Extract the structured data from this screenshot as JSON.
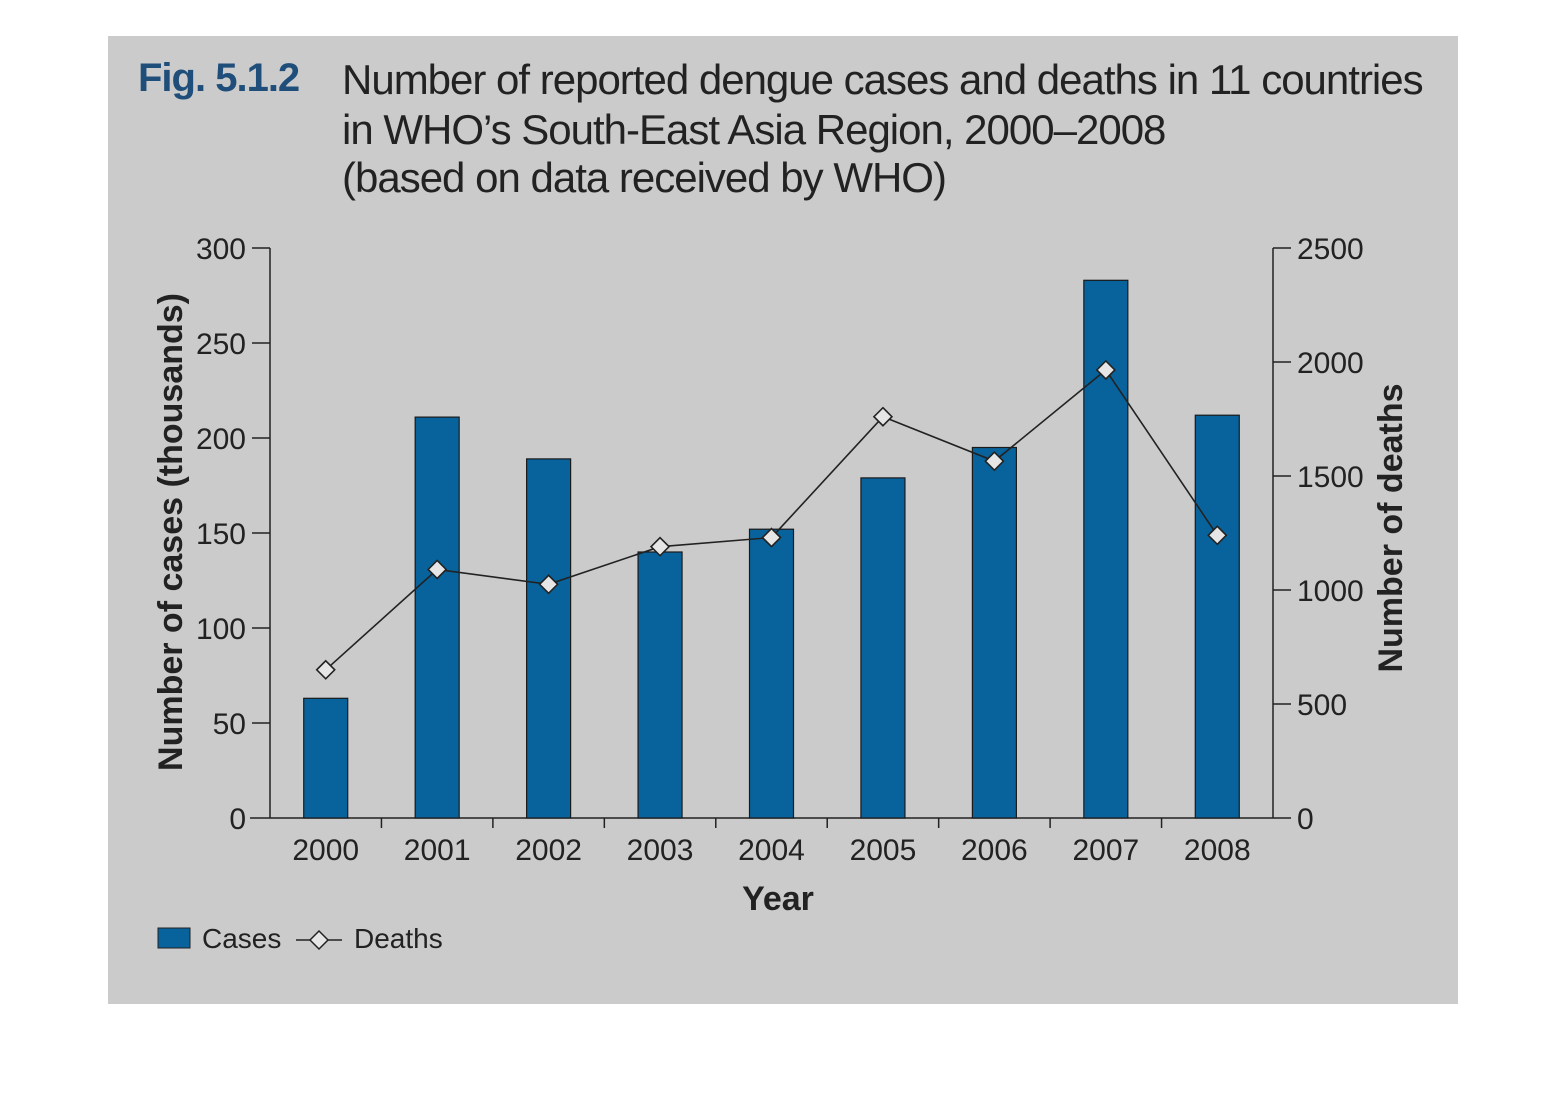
{
  "figure": {
    "fig_number": "Fig. 5.1.2",
    "title_lines": [
      "Number of reported dengue cases and deaths in 11 countries",
      "in WHO’s South-East Asia Region, 2000–2008",
      "(based on data received by WHO)"
    ]
  },
  "chart_data": {
    "type": "bar",
    "categories": [
      "2000",
      "2001",
      "2002",
      "2003",
      "2004",
      "2005",
      "2006",
      "2007",
      "2008"
    ],
    "series": [
      {
        "name": "Cases",
        "type": "bar",
        "axis": "left",
        "color": "#08639c",
        "values": [
          63,
          211,
          189,
          140,
          152,
          179,
          195,
          283,
          212
        ]
      },
      {
        "name": "Deaths",
        "type": "line",
        "axis": "right",
        "color": "#222222",
        "values": [
          650,
          1090,
          1025,
          1190,
          1230,
          1760,
          1565,
          1965,
          1240
        ]
      }
    ],
    "xlabel": "Year",
    "ylabel": "Number of cases (thousands)",
    "y2label": "Number of deaths",
    "ylim": [
      0,
      300
    ],
    "y2lim": [
      0,
      2500
    ],
    "yticks": [
      "0",
      "50",
      "100",
      "150",
      "200",
      "250",
      "300"
    ],
    "y2ticks": [
      "0",
      "500",
      "1000",
      "1500",
      "2000",
      "2500"
    ],
    "legend": [
      "Cases",
      "Deaths"
    ],
    "legend_position": "bottom-left",
    "grid": false
  }
}
